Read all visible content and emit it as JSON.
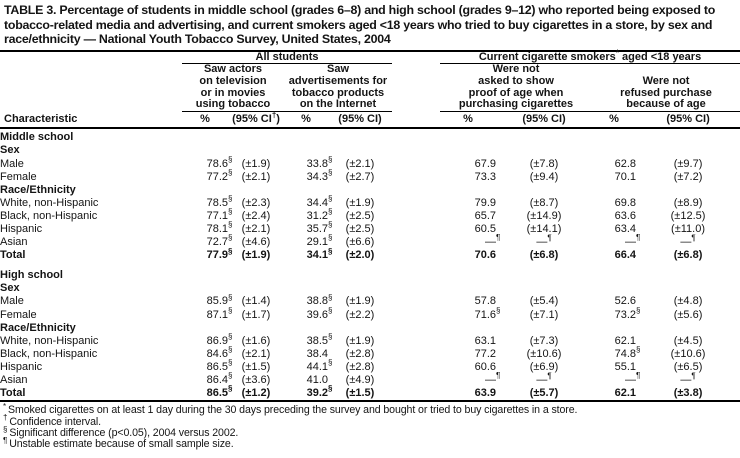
{
  "title": "TABLE 3. Percentage of students in middle school (grades 6–8) and high school (grades 9–12) who reported being exposed to tobacco-related media and advertising, and current smokers aged <18 years who tried to buy cigarettes in a store, by sex and race/ethnicity — National Youth Tobacco Survey, United States, 2004",
  "table": {
    "characteristic_label": "Characteristic",
    "span_headers": [
      {
        "pre": "All students"
      },
      {
        "pre": "Current cigarette smokers",
        "sup": "*",
        "post": " aged <18 years"
      }
    ],
    "group_headers": [
      {
        "lines": [
          "Saw actors",
          "on television",
          "or in movies",
          "using tobacco"
        ]
      },
      {
        "lines": [
          "Saw",
          "advertisements for",
          "tobacco products",
          "on the Internet"
        ]
      },
      {
        "lines": [
          "Were not",
          "asked to show",
          "proof of age when",
          "purchasing cigarettes"
        ]
      },
      {
        "lines": [
          "Were not",
          "refused purchase",
          "because of age"
        ]
      }
    ],
    "sub_headers": [
      {
        "pre": "%"
      },
      {
        "pre": "(95% CI",
        "sup": "†",
        "post": ")"
      },
      {
        "pre": "%"
      },
      {
        "pre": "(95% CI)"
      },
      {
        "pre": "%"
      },
      {
        "pre": "(95% CI)"
      },
      {
        "pre": "%"
      },
      {
        "pre": "(95% CI)"
      }
    ],
    "rows": [
      {
        "label": "Middle school",
        "bold": true,
        "indent": 0,
        "cells": []
      },
      {
        "label": "Sex",
        "bold": true,
        "indent": 1,
        "cells": []
      },
      {
        "label": "Male",
        "indent": 2,
        "cells": [
          {
            "t": "78.6",
            "s": "§"
          },
          {
            "t": "(±1.9)"
          },
          {
            "t": "33.8",
            "s": "§"
          },
          {
            "t": "(±2.1)"
          },
          {
            "t": "67.9"
          },
          {
            "t": "(±7.8)"
          },
          {
            "t": "62.8"
          },
          {
            "t": "(±9.7)"
          }
        ]
      },
      {
        "label": "Female",
        "indent": 2,
        "cells": [
          {
            "t": "77.2",
            "s": "§"
          },
          {
            "t": "(±2.1)"
          },
          {
            "t": "34.3",
            "s": "§"
          },
          {
            "t": "(±2.7)"
          },
          {
            "t": "73.3"
          },
          {
            "t": "(±9.4)"
          },
          {
            "t": "70.1"
          },
          {
            "t": "(±7.2)"
          }
        ]
      },
      {
        "label": "Race/Ethnicity",
        "bold": true,
        "indent": 1,
        "cells": []
      },
      {
        "label": "White, non-Hispanic",
        "indent": 2,
        "cells": [
          {
            "t": "78.5",
            "s": "§"
          },
          {
            "t": "(±2.3)"
          },
          {
            "t": "34.4",
            "s": "§"
          },
          {
            "t": "(±1.9)"
          },
          {
            "t": "79.9"
          },
          {
            "t": "(±8.7)"
          },
          {
            "t": "69.8"
          },
          {
            "t": "(±8.9)"
          }
        ]
      },
      {
        "label": "Black, non-Hispanic",
        "indent": 2,
        "cells": [
          {
            "t": "77.1",
            "s": "§"
          },
          {
            "t": "(±2.4)"
          },
          {
            "t": "31.2",
            "s": "§"
          },
          {
            "t": "(±2.5)"
          },
          {
            "t": "65.7"
          },
          {
            "t": "(±14.9)"
          },
          {
            "t": "63.6"
          },
          {
            "t": "(±12.5)"
          }
        ]
      },
      {
        "label": "Hispanic",
        "indent": 2,
        "cells": [
          {
            "t": "78.1",
            "s": "§"
          },
          {
            "t": "(±2.1)"
          },
          {
            "t": "35.7",
            "s": "§"
          },
          {
            "t": "(±2.5)"
          },
          {
            "t": "60.5"
          },
          {
            "t": "(±14.1)"
          },
          {
            "t": "63.4"
          },
          {
            "t": "(±11.0)"
          }
        ]
      },
      {
        "label": "Asian",
        "indent": 2,
        "cells": [
          {
            "t": "72.7",
            "s": "§"
          },
          {
            "t": "(±4.6)"
          },
          {
            "t": "29.1",
            "s": "§"
          },
          {
            "t": "(±6.6)"
          },
          {
            "t": "—",
            "s": "¶"
          },
          {
            "t": "—",
            "s": "¶"
          },
          {
            "t": "—",
            "s": "¶"
          },
          {
            "t": "—",
            "s": "¶"
          }
        ]
      },
      {
        "label": "Total",
        "bold": true,
        "indent": 0,
        "cells": [
          {
            "t": "77.9",
            "s": "§"
          },
          {
            "t": "(±1.9)"
          },
          {
            "t": "34.1",
            "s": "§"
          },
          {
            "t": "(±2.0)"
          },
          {
            "t": "70.6"
          },
          {
            "t": "(±6.8)"
          },
          {
            "t": "66.4"
          },
          {
            "t": "(±6.8)"
          }
        ]
      },
      {
        "label": "High school",
        "bold": true,
        "indent": 0,
        "gap_above": true,
        "cells": []
      },
      {
        "label": "Sex",
        "bold": true,
        "indent": 1,
        "cells": []
      },
      {
        "label": "Male",
        "indent": 2,
        "cells": [
          {
            "t": "85.9",
            "s": "§"
          },
          {
            "t": "(±1.4)"
          },
          {
            "t": "38.8",
            "s": "§"
          },
          {
            "t": "(±1.9)"
          },
          {
            "t": "57.8"
          },
          {
            "t": "(±5.4)"
          },
          {
            "t": "52.6"
          },
          {
            "t": "(±4.8)"
          }
        ]
      },
      {
        "label": "Female",
        "indent": 2,
        "cells": [
          {
            "t": "87.1",
            "s": "§"
          },
          {
            "t": "(±1.7)"
          },
          {
            "t": "39.6",
            "s": "§"
          },
          {
            "t": "(±2.2)"
          },
          {
            "t": "71.6",
            "s": "§"
          },
          {
            "t": "(±7.1)"
          },
          {
            "t": "73.2",
            "s": "§"
          },
          {
            "t": "(±5.6)"
          }
        ]
      },
      {
        "label": "Race/Ethnicity",
        "bold": true,
        "indent": 1,
        "cells": []
      },
      {
        "label": "White, non-Hispanic",
        "indent": 2,
        "cells": [
          {
            "t": "86.9",
            "s": "§"
          },
          {
            "t": "(±1.6)"
          },
          {
            "t": "38.5",
            "s": "§"
          },
          {
            "t": "(±1.9)"
          },
          {
            "t": "63.1"
          },
          {
            "t": "(±7.3)"
          },
          {
            "t": "62.1"
          },
          {
            "t": "(±4.5)"
          }
        ]
      },
      {
        "label": "Black, non-Hispanic",
        "indent": 2,
        "cells": [
          {
            "t": "84.6",
            "s": "§"
          },
          {
            "t": "(±2.1)"
          },
          {
            "t": "38.4"
          },
          {
            "t": "(±2.8)"
          },
          {
            "t": "77.2"
          },
          {
            "t": "(±10.6)"
          },
          {
            "t": "74.8",
            "s": "§"
          },
          {
            "t": "(±10.6)"
          }
        ]
      },
      {
        "label": "Hispanic",
        "indent": 2,
        "cells": [
          {
            "t": "86.5",
            "s": "§"
          },
          {
            "t": "(±1.5)"
          },
          {
            "t": "44.1",
            "s": "§"
          },
          {
            "t": "(±2.8)"
          },
          {
            "t": "60.6"
          },
          {
            "t": "(±6.9)"
          },
          {
            "t": "55.1"
          },
          {
            "t": "(±6.5)"
          }
        ]
      },
      {
        "label": "Asian",
        "indent": 2,
        "cells": [
          {
            "t": "86.4",
            "s": "§"
          },
          {
            "t": "(±3.6)"
          },
          {
            "t": "41.0"
          },
          {
            "t": "(±4.9)"
          },
          {
            "t": "—",
            "s": "¶"
          },
          {
            "t": "—",
            "s": "¶"
          },
          {
            "t": "—",
            "s": "¶"
          },
          {
            "t": "—",
            "s": "¶"
          }
        ]
      },
      {
        "label": "Total",
        "bold": true,
        "indent": 0,
        "cells": [
          {
            "t": "86.5",
            "s": "§"
          },
          {
            "t": "(±1.2)"
          },
          {
            "t": "39.2",
            "s": "§"
          },
          {
            "t": "(±1.5)"
          },
          {
            "t": "63.9"
          },
          {
            "t": "(±5.7)"
          },
          {
            "t": "62.1"
          },
          {
            "t": "(±3.8)"
          }
        ]
      }
    ]
  },
  "footnotes": [
    {
      "mark": "*",
      "text": "Smoked cigarettes on at least 1 day during the 30 days preceding the survey and bought or tried to buy cigarettes in a store."
    },
    {
      "mark": "†",
      "text": "Confidence interval."
    },
    {
      "mark": "§",
      "text": "Significant difference (p<0.05), 2004 versus 2002."
    },
    {
      "mark": "¶",
      "text": "Unstable estimate because of small sample size."
    }
  ]
}
